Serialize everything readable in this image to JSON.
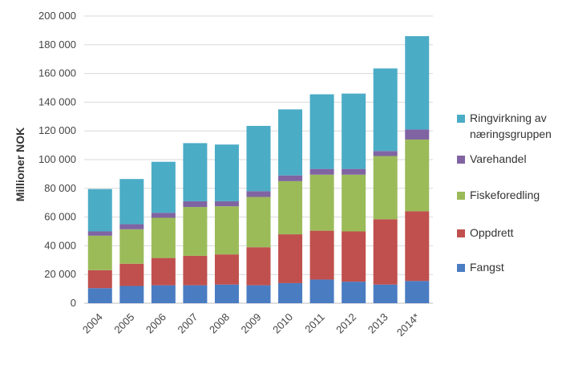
{
  "chart_data": {
    "type": "bar",
    "stacked": true,
    "title": "",
    "xlabel": "",
    "ylabel": "Millioner NOK",
    "ylim": [
      0,
      200000
    ],
    "yticks": [
      0,
      20000,
      40000,
      60000,
      80000,
      100000,
      120000,
      140000,
      160000,
      180000,
      200000
    ],
    "ytick_labels": [
      "0",
      "20 000",
      "40 000",
      "60 000",
      "80 000",
      "100 000",
      "120 000",
      "140 000",
      "160 000",
      "180 000",
      "200 000"
    ],
    "categories": [
      "2004",
      "2005",
      "2006",
      "2007",
      "2008",
      "2009",
      "2010",
      "2011",
      "2012",
      "2013",
      "2014*"
    ],
    "grid": true,
    "legend_position": "right",
    "series": [
      {
        "name": "Fangst",
        "color": "#4a7cc2",
        "values": [
          10500,
          12000,
          12500,
          12500,
          13000,
          12500,
          14000,
          16500,
          15000,
          13000,
          15500
        ]
      },
      {
        "name": "Oppdrett",
        "color": "#c0504d",
        "values": [
          12500,
          15500,
          19000,
          20500,
          21000,
          26500,
          34000,
          34000,
          35000,
          45500,
          48500
        ]
      },
      {
        "name": "Fiskeforedling",
        "color": "#9bbb59",
        "values": [
          24000,
          24000,
          28000,
          34000,
          33500,
          35000,
          37000,
          39000,
          39500,
          44000,
          50000
        ]
      },
      {
        "name": "Varehandel",
        "color": "#8064a2",
        "values": [
          3000,
          3500,
          3500,
          4000,
          3500,
          4000,
          4000,
          4000,
          4000,
          3500,
          7000
        ]
      },
      {
        "name": "Ringvirkning av næringsgruppen",
        "color": "#4bacc6",
        "values": [
          29500,
          31500,
          35500,
          40500,
          39500,
          45500,
          46000,
          52000,
          52500,
          57500,
          65000
        ]
      }
    ],
    "legend": [
      {
        "series": 4,
        "lines": [
          "Ringvirkning av",
          "næringsgruppen"
        ]
      },
      {
        "series": 3,
        "lines": [
          "Varehandel"
        ]
      },
      {
        "series": 2,
        "lines": [
          "Fiskeforedling"
        ]
      },
      {
        "series": 1,
        "lines": [
          "Oppdrett"
        ]
      },
      {
        "series": 0,
        "lines": [
          "Fangst"
        ]
      }
    ]
  }
}
